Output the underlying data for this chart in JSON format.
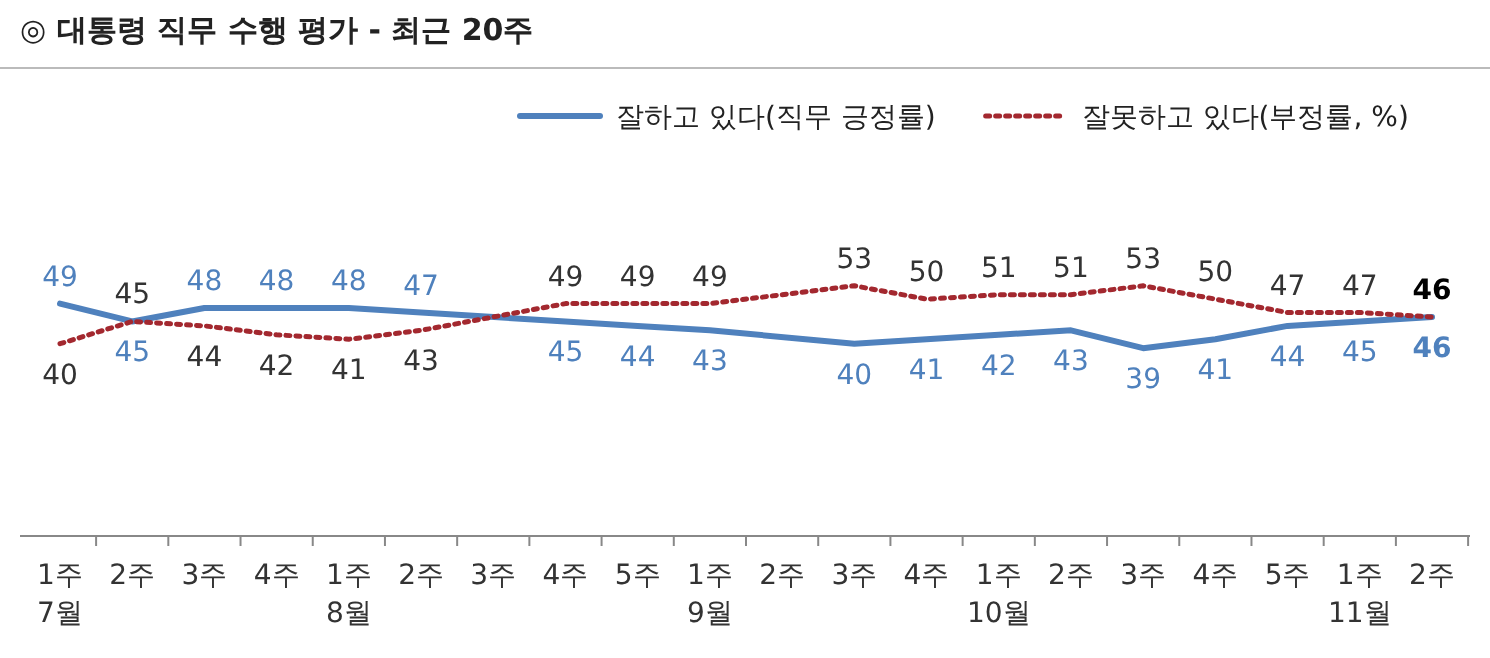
{
  "chart_data": {
    "type": "line",
    "title": "◎ 대통령 직무 수행 평가 - 최근 20주",
    "categories": [
      "1주\n7월",
      "2주",
      "3주",
      "4주",
      "1주\n8월",
      "2주",
      "3주",
      "4주",
      "5주",
      "1주\n9월",
      "2주",
      "3주",
      "4주",
      "1주\n10월",
      "2주",
      "3주",
      "4주",
      "5주",
      "1주\n11월",
      "2주"
    ],
    "series": [
      {
        "name": "잘하고 있다(직무 긍정률)",
        "color": "#4f81bd",
        "line_style": "solid",
        "values": [
          49,
          45,
          48,
          48,
          48,
          47,
          null,
          45,
          44,
          43,
          null,
          40,
          41,
          42,
          43,
          39,
          41,
          44,
          45,
          46
        ]
      },
      {
        "name": "잘못하고 있다(부정률, %)",
        "color": "#a3282f",
        "line_style": "dotted",
        "values": [
          40,
          45,
          44,
          42,
          41,
          43,
          null,
          49,
          49,
          49,
          null,
          53,
          50,
          51,
          51,
          53,
          50,
          47,
          47,
          46
        ]
      }
    ],
    "data_labels": true,
    "legend": "top right",
    "marker": "none"
  }
}
